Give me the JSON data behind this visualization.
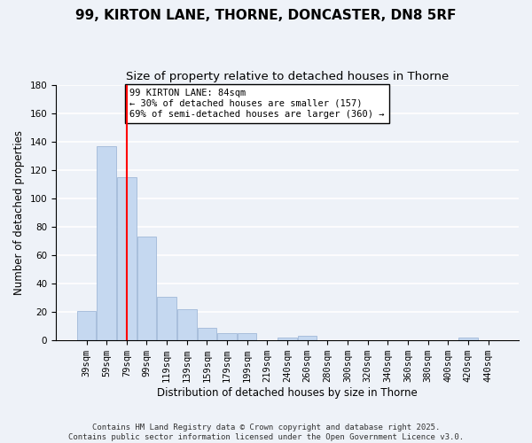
{
  "title": "99, KIRTON LANE, THORNE, DONCASTER, DN8 5RF",
  "subtitle": "Size of property relative to detached houses in Thorne",
  "xlabel": "Distribution of detached houses by size in Thorne",
  "ylabel": "Number of detached properties",
  "bar_color": "#c5d8f0",
  "bar_edge_color": "#a0b8d8",
  "bins": [
    "39sqm",
    "59sqm",
    "79sqm",
    "99sqm",
    "119sqm",
    "139sqm",
    "159sqm",
    "179sqm",
    "199sqm",
    "219sqm",
    "240sqm",
    "260sqm",
    "280sqm",
    "300sqm",
    "320sqm",
    "340sqm",
    "360sqm",
    "380sqm",
    "400sqm",
    "420sqm",
    "440sqm"
  ],
  "values": [
    21,
    137,
    115,
    73,
    31,
    22,
    9,
    5,
    5,
    0,
    2,
    3,
    0,
    0,
    0,
    0,
    0,
    0,
    0,
    2,
    0
  ],
  "ylim": [
    0,
    180
  ],
  "yticks": [
    0,
    20,
    40,
    60,
    80,
    100,
    120,
    140,
    160,
    180
  ],
  "property_line_x": 2.0,
  "annotation_title": "99 KIRTON LANE: 84sqm",
  "annotation_line1": "← 30% of detached houses are smaller (157)",
  "annotation_line2": "69% of semi-detached houses are larger (360) →",
  "footer_line1": "Contains HM Land Registry data © Crown copyright and database right 2025.",
  "footer_line2": "Contains public sector information licensed under the Open Government Licence v3.0.",
  "background_color": "#eef2f8",
  "grid_color": "#ffffff",
  "title_fontsize": 11,
  "subtitle_fontsize": 9.5,
  "axis_label_fontsize": 8.5,
  "tick_fontsize": 7.5,
  "annotation_fontsize": 7.5,
  "footer_fontsize": 6.5
}
